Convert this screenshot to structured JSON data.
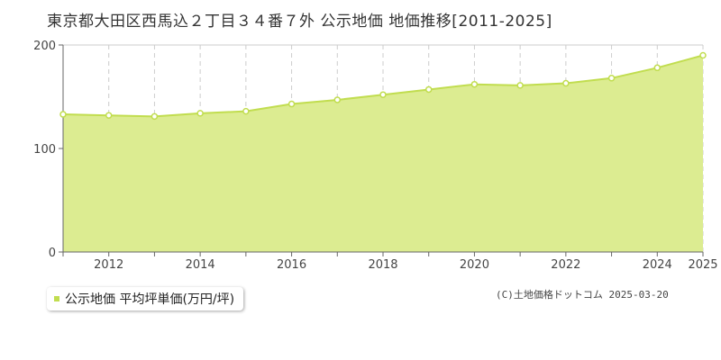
{
  "chart_data": {
    "type": "area",
    "title": "東京都大田区西馬込２丁目３４番７外 公示地価 地価推移[2011-2025]",
    "x": [
      2011,
      2012,
      2013,
      2014,
      2015,
      2016,
      2017,
      2018,
      2019,
      2020,
      2021,
      2022,
      2023,
      2024,
      2025
    ],
    "series": [
      {
        "name": "公示地価 平均坪単価(万円/坪)",
        "values": [
          133,
          132,
          131,
          134,
          136,
          143,
          147,
          152,
          157,
          162,
          161,
          163,
          168,
          178,
          190
        ]
      }
    ],
    "x_tick_labels": [
      "2012",
      "2014",
      "2016",
      "2018",
      "2020",
      "2022",
      "2024",
      "2025"
    ],
    "x_tick_values": [
      2012,
      2014,
      2016,
      2018,
      2020,
      2022,
      2024,
      2025
    ],
    "y_ticks": [
      0,
      100,
      200
    ],
    "xlim": [
      2011,
      2025
    ],
    "ylim": [
      0,
      200
    ],
    "grid": true,
    "legend_position": "bottom-left",
    "colors": {
      "fill": "#dcec91",
      "line": "#c1dd4f",
      "marker": "#c1dd4f",
      "grid": "#cccccc",
      "axis": "#666666"
    }
  },
  "credit": "(C)土地価格ドットコム 2025-03-20"
}
